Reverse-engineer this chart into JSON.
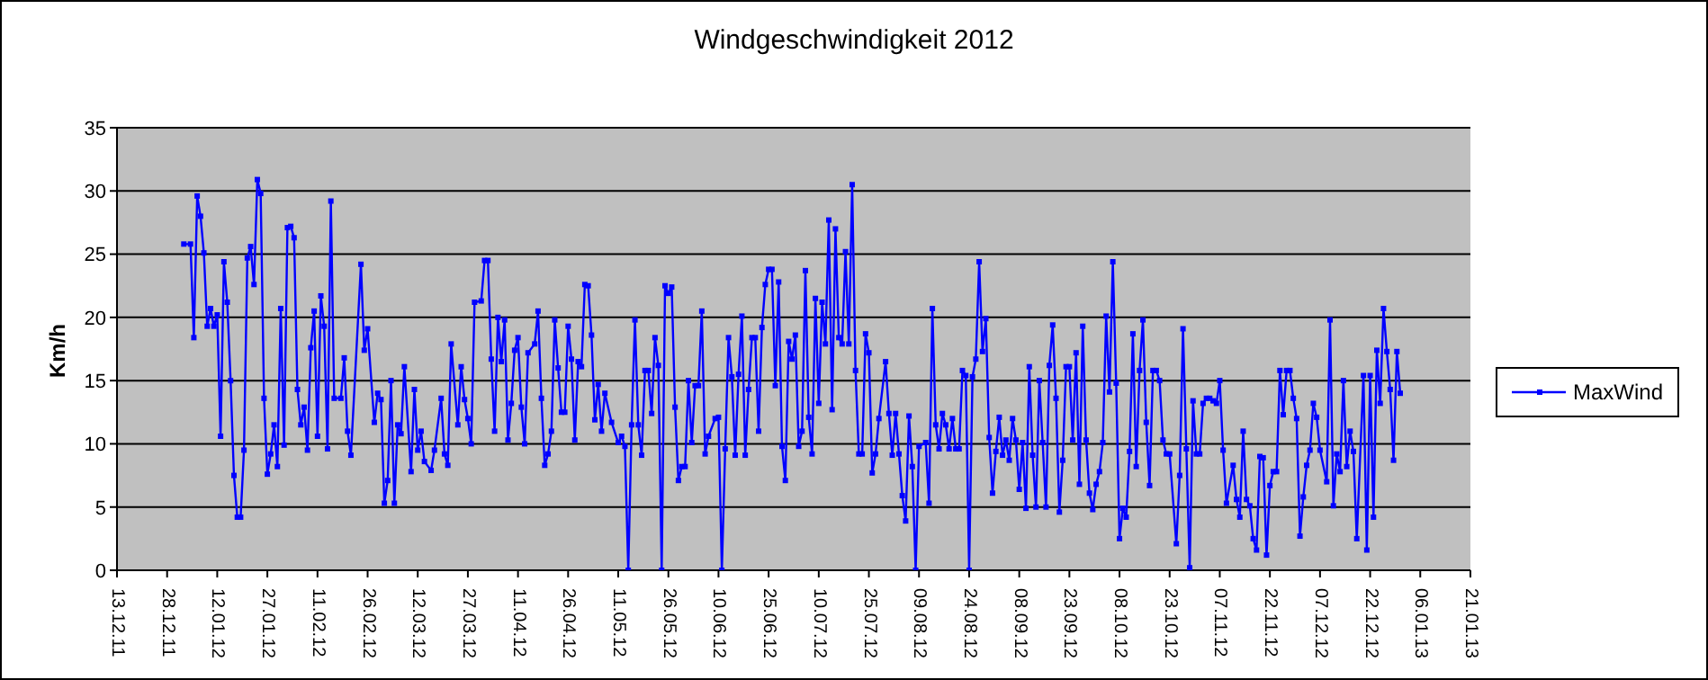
{
  "chart_data": {
    "type": "line",
    "title": "Windgeschwindigkeit 2012",
    "ylabel": "Km/h",
    "x": [
      "2012-01-02",
      "2012-01-04",
      "2012-01-05",
      "2012-01-06",
      "2012-01-07",
      "2012-01-08",
      "2012-01-09",
      "2012-01-10",
      "2012-01-11",
      "2012-01-12",
      "2012-01-13",
      "2012-01-14",
      "2012-01-15",
      "2012-01-16",
      "2012-01-17",
      "2012-01-18",
      "2012-01-19",
      "2012-01-20",
      "2012-01-21",
      "2012-01-22",
      "2012-01-23",
      "2012-01-24",
      "2012-01-25",
      "2012-01-26",
      "2012-01-27",
      "2012-01-28",
      "2012-01-29",
      "2012-01-30",
      "2012-01-31",
      "2012-02-01",
      "2012-02-02",
      "2012-02-03",
      "2012-02-04",
      "2012-02-05",
      "2012-02-06",
      "2012-02-07",
      "2012-02-08",
      "2012-02-09",
      "2012-02-10",
      "2012-02-11",
      "2012-02-12",
      "2012-02-13",
      "2012-02-14",
      "2012-02-15",
      "2012-02-16",
      "2012-02-18",
      "2012-02-19",
      "2012-02-20",
      "2012-02-21",
      "2012-02-24",
      "2012-02-25",
      "2012-02-26",
      "2012-02-28",
      "2012-02-29",
      "2012-03-01",
      "2012-03-02",
      "2012-03-03",
      "2012-03-04",
      "2012-03-05",
      "2012-03-06",
      "2012-03-07",
      "2012-03-08",
      "2012-03-10",
      "2012-03-11",
      "2012-03-12",
      "2012-03-13",
      "2012-03-14",
      "2012-03-16",
      "2012-03-17",
      "2012-03-19",
      "2012-03-20",
      "2012-03-21",
      "2012-03-22",
      "2012-03-24",
      "2012-03-25",
      "2012-03-26",
      "2012-03-27",
      "2012-03-28",
      "2012-03-29",
      "2012-03-31",
      "2012-04-01",
      "2012-04-02",
      "2012-04-03",
      "2012-04-04",
      "2012-04-05",
      "2012-04-06",
      "2012-04-07",
      "2012-04-08",
      "2012-04-09",
      "2012-04-10",
      "2012-04-11",
      "2012-04-12",
      "2012-04-13",
      "2012-04-14",
      "2012-04-16",
      "2012-04-17",
      "2012-04-18",
      "2012-04-19",
      "2012-04-20",
      "2012-04-21",
      "2012-04-22",
      "2012-04-23",
      "2012-04-24",
      "2012-04-25",
      "2012-04-26",
      "2012-04-27",
      "2012-04-28",
      "2012-04-29",
      "2012-04-30",
      "2012-05-01",
      "2012-05-02",
      "2012-05-03",
      "2012-05-04",
      "2012-05-05",
      "2012-05-06",
      "2012-05-07",
      "2012-05-09",
      "2012-05-11",
      "2012-05-12",
      "2012-05-13",
      "2012-05-14",
      "2012-05-15",
      "2012-05-16",
      "2012-05-17",
      "2012-05-18",
      "2012-05-19",
      "2012-05-20",
      "2012-05-21",
      "2012-05-22",
      "2012-05-23",
      "2012-05-24",
      "2012-05-25",
      "2012-05-26",
      "2012-05-27",
      "2012-05-28",
      "2012-05-29",
      "2012-05-30",
      "2012-05-31",
      "2012-06-01",
      "2012-06-02",
      "2012-06-03",
      "2012-06-04",
      "2012-06-05",
      "2012-06-06",
      "2012-06-07",
      "2012-06-09",
      "2012-06-10",
      "2012-06-11",
      "2012-06-12",
      "2012-06-13",
      "2012-06-14",
      "2012-06-15",
      "2012-06-16",
      "2012-06-17",
      "2012-06-18",
      "2012-06-19",
      "2012-06-20",
      "2012-06-21",
      "2012-06-22",
      "2012-06-23",
      "2012-06-24",
      "2012-06-25",
      "2012-06-26",
      "2012-06-27",
      "2012-06-28",
      "2012-06-29",
      "2012-06-30",
      "2012-07-01",
      "2012-07-02",
      "2012-07-03",
      "2012-07-04",
      "2012-07-05",
      "2012-07-06",
      "2012-07-07",
      "2012-07-08",
      "2012-07-09",
      "2012-07-10",
      "2012-07-11",
      "2012-07-12",
      "2012-07-13",
      "2012-07-14",
      "2012-07-15",
      "2012-07-16",
      "2012-07-17",
      "2012-07-18",
      "2012-07-19",
      "2012-07-20",
      "2012-07-21",
      "2012-07-22",
      "2012-07-23",
      "2012-07-24",
      "2012-07-25",
      "2012-07-26",
      "2012-07-27",
      "2012-07-28",
      "2012-07-30",
      "2012-07-31",
      "2012-08-01",
      "2012-08-02",
      "2012-08-03",
      "2012-08-04",
      "2012-08-05",
      "2012-08-06",
      "2012-08-07",
      "2012-08-08",
      "2012-08-09",
      "2012-08-11",
      "2012-08-12",
      "2012-08-13",
      "2012-08-14",
      "2012-08-15",
      "2012-08-16",
      "2012-08-17",
      "2012-08-18",
      "2012-08-19",
      "2012-08-20",
      "2012-08-21",
      "2012-08-22",
      "2012-08-23",
      "2012-08-24",
      "2012-08-25",
      "2012-08-26",
      "2012-08-27",
      "2012-08-28",
      "2012-08-29",
      "2012-08-30",
      "2012-08-31",
      "2012-09-01",
      "2012-09-02",
      "2012-09-03",
      "2012-09-04",
      "2012-09-05",
      "2012-09-06",
      "2012-09-07",
      "2012-09-08",
      "2012-09-09",
      "2012-09-10",
      "2012-09-11",
      "2012-09-12",
      "2012-09-13",
      "2012-09-14",
      "2012-09-15",
      "2012-09-16",
      "2012-09-17",
      "2012-09-18",
      "2012-09-19",
      "2012-09-20",
      "2012-09-21",
      "2012-09-22",
      "2012-09-23",
      "2012-09-24",
      "2012-09-25",
      "2012-09-26",
      "2012-09-27",
      "2012-09-28",
      "2012-09-29",
      "2012-09-30",
      "2012-10-01",
      "2012-10-02",
      "2012-10-03",
      "2012-10-04",
      "2012-10-05",
      "2012-10-06",
      "2012-10-07",
      "2012-10-08",
      "2012-10-09",
      "2012-10-10",
      "2012-10-11",
      "2012-10-12",
      "2012-10-13",
      "2012-10-14",
      "2012-10-15",
      "2012-10-16",
      "2012-10-17",
      "2012-10-18",
      "2012-10-19",
      "2012-10-20",
      "2012-10-21",
      "2012-10-22",
      "2012-10-23",
      "2012-10-25",
      "2012-10-26",
      "2012-10-27",
      "2012-10-28",
      "2012-10-29",
      "2012-10-30",
      "2012-10-31",
      "2012-11-01",
      "2012-11-02",
      "2012-11-03",
      "2012-11-04",
      "2012-11-05",
      "2012-11-06",
      "2012-11-07",
      "2012-11-08",
      "2012-11-09",
      "2012-11-11",
      "2012-11-12",
      "2012-11-13",
      "2012-11-14",
      "2012-11-15",
      "2012-11-16",
      "2012-11-17",
      "2012-11-18",
      "2012-11-19",
      "2012-11-20",
      "2012-11-21",
      "2012-11-22",
      "2012-11-23",
      "2012-11-24",
      "2012-11-25",
      "2012-11-26",
      "2012-11-27",
      "2012-11-28",
      "2012-11-29",
      "2012-11-30",
      "2012-12-01",
      "2012-12-02",
      "2012-12-03",
      "2012-12-04",
      "2012-12-05",
      "2012-12-06",
      "2012-12-07",
      "2012-12-09",
      "2012-12-10",
      "2012-12-11",
      "2012-12-12",
      "2012-12-13",
      "2012-12-14",
      "2012-12-15",
      "2012-12-16",
      "2012-12-17",
      "2012-12-18",
      "2012-12-20",
      "2012-12-21",
      "2012-12-22",
      "2012-12-23",
      "2012-12-24",
      "2012-12-25",
      "2012-12-26",
      "2012-12-27",
      "2012-12-28",
      "2012-12-29",
      "2012-12-30",
      "2012-12-31"
    ],
    "series": [
      {
        "name": "MaxWind",
        "color": "#0000ff",
        "values": [
          25.8,
          25.8,
          18.4,
          29.6,
          28.0,
          25.1,
          19.3,
          20.7,
          19.3,
          20.2,
          10.6,
          24.4,
          21.2,
          15.0,
          7.5,
          4.2,
          4.2,
          9.5,
          24.7,
          25.6,
          22.6,
          30.9,
          29.8,
          13.6,
          7.6,
          9.2,
          11.5,
          8.2,
          20.7,
          9.9,
          27.1,
          27.2,
          26.3,
          14.3,
          11.5,
          12.9,
          9.5,
          17.6,
          20.5,
          10.6,
          21.7,
          19.3,
          9.6,
          29.2,
          13.6,
          13.6,
          16.8,
          11.0,
          9.1,
          24.2,
          17.4,
          19.1,
          11.7,
          14.0,
          13.5,
          5.3,
          7.1,
          15.0,
          5.3,
          11.5,
          10.8,
          16.1,
          7.8,
          14.3,
          9.5,
          11.0,
          8.6,
          7.9,
          9.5,
          13.6,
          9.2,
          8.3,
          17.9,
          11.5,
          16.1,
          13.5,
          12.0,
          10.0,
          21.2,
          21.3,
          24.5,
          24.5,
          16.7,
          11.0,
          20.0,
          16.5,
          19.8,
          10.3,
          13.2,
          17.4,
          18.4,
          12.9,
          10.0,
          17.2,
          17.9,
          20.5,
          13.6,
          8.3,
          9.2,
          11.0,
          19.8,
          16.0,
          12.5,
          12.5,
          19.3,
          16.7,
          10.3,
          16.5,
          16.1,
          22.6,
          22.5,
          18.6,
          11.9,
          14.7,
          11.0,
          14.0,
          11.7,
          10.1,
          10.6,
          9.8,
          0,
          11.5,
          19.8,
          11.5,
          9.1,
          15.8,
          15.8,
          12.4,
          18.4,
          16.2,
          0,
          22.5,
          21.9,
          22.4,
          12.9,
          7.1,
          8.2,
          8.2,
          15.0,
          10.1,
          14.6,
          14.6,
          20.5,
          9.2,
          10.6,
          12.0,
          12.1,
          0,
          9.6,
          18.4,
          15.3,
          9.1,
          15.5,
          20.1,
          9.1,
          14.3,
          18.4,
          18.4,
          11.0,
          19.2,
          22.6,
          23.8,
          23.8,
          14.6,
          22.8,
          9.8,
          7.1,
          18.1,
          16.7,
          18.6,
          9.8,
          11.0,
          23.7,
          12.1,
          9.2,
          21.5,
          13.2,
          21.2,
          17.9,
          27.7,
          12.7,
          27.0,
          18.4,
          17.9,
          25.2,
          17.9,
          30.5,
          15.8,
          9.2,
          9.2,
          18.7,
          17.2,
          7.7,
          9.2,
          12.0,
          16.5,
          12.4,
          9.1,
          12.4,
          9.2,
          5.9,
          3.9,
          12.2,
          8.2,
          0,
          9.8,
          10.1,
          5.3,
          20.7,
          11.5,
          9.6,
          12.4,
          11.5,
          9.6,
          12.0,
          9.6,
          9.6,
          15.8,
          15.4,
          0,
          15.3,
          16.7,
          24.4,
          17.3,
          19.9,
          10.5,
          6.1,
          9.4,
          12.1,
          9.1,
          10.3,
          8.7,
          12.0,
          10.3,
          6.4,
          10.1,
          4.9,
          16.1,
          9.1,
          5.0,
          15.0,
          10.1,
          5.0,
          16.2,
          19.4,
          13.6,
          4.6,
          8.7,
          16.1,
          16.1,
          10.3,
          17.2,
          6.8,
          19.3,
          10.3,
          6.1,
          4.8,
          6.8,
          7.8,
          10.1,
          20.1,
          14.1,
          24.4,
          14.8,
          2.5,
          4.9,
          4.2,
          9.4,
          18.7,
          8.2,
          15.8,
          19.8,
          11.7,
          6.7,
          15.8,
          15.8,
          15.0,
          10.3,
          9.2,
          9.2,
          2.1,
          7.5,
          19.1,
          9.6,
          0.2,
          13.4,
          9.2,
          9.2,
          13.2,
          13.6,
          13.6,
          13.4,
          13.2,
          15.0,
          9.5,
          5.3,
          8.3,
          5.6,
          4.2,
          11.0,
          5.6,
          5.1,
          2.5,
          1.6,
          9.0,
          8.9,
          1.2,
          6.7,
          7.8,
          7.8,
          15.8,
          12.3,
          15.8,
          15.8,
          13.6,
          12.0,
          2.7,
          5.8,
          8.3,
          9.5,
          13.2,
          12.1,
          9.5,
          7.0,
          19.8,
          5.1,
          9.2,
          7.8,
          15.0,
          8.2,
          11.0,
          9.4,
          2.5,
          15.4,
          1.6,
          15.4,
          4.2,
          17.4,
          13.2,
          20.7,
          17.3,
          14.3,
          8.7,
          17.3,
          14.0
        ]
      }
    ],
    "xlim": [
      "2011-12-13",
      "2013-01-21"
    ],
    "xticks": [
      {
        "value": "2011-12-13",
        "label": "13.12.11"
      },
      {
        "value": "2011-12-28",
        "label": "28.12.11"
      },
      {
        "value": "2012-01-12",
        "label": "12.01.12"
      },
      {
        "value": "2012-01-27",
        "label": "27.01.12"
      },
      {
        "value": "2012-02-11",
        "label": "11.02.12"
      },
      {
        "value": "2012-02-26",
        "label": "26.02.12"
      },
      {
        "value": "2012-03-12",
        "label": "12.03.12"
      },
      {
        "value": "2012-03-27",
        "label": "27.03.12"
      },
      {
        "value": "2012-04-11",
        "label": "11.04.12"
      },
      {
        "value": "2012-04-26",
        "label": "26.04.12"
      },
      {
        "value": "2012-05-11",
        "label": "11.05.12"
      },
      {
        "value": "2012-05-26",
        "label": "26.05.12"
      },
      {
        "value": "2012-06-10",
        "label": "10.06.12"
      },
      {
        "value": "2012-06-25",
        "label": "25.06.12"
      },
      {
        "value": "2012-07-10",
        "label": "10.07.12"
      },
      {
        "value": "2012-07-25",
        "label": "25.07.12"
      },
      {
        "value": "2012-08-09",
        "label": "09.08.12"
      },
      {
        "value": "2012-08-24",
        "label": "24.08.12"
      },
      {
        "value": "2012-09-08",
        "label": "08.09.12"
      },
      {
        "value": "2012-09-23",
        "label": "23.09.12"
      },
      {
        "value": "2012-10-08",
        "label": "08.10.12"
      },
      {
        "value": "2012-10-23",
        "label": "23.10.12"
      },
      {
        "value": "2012-11-07",
        "label": "07.11.12"
      },
      {
        "value": "2012-11-22",
        "label": "22.11.12"
      },
      {
        "value": "2012-12-07",
        "label": "07.12.12"
      },
      {
        "value": "2012-12-22",
        "label": "22.12.12"
      },
      {
        "value": "2013-01-06",
        "label": "06.01.13"
      },
      {
        "value": "2013-01-21",
        "label": "21.01.13"
      }
    ],
    "ylim": [
      0,
      35
    ],
    "yticks": [
      0,
      5,
      10,
      15,
      20,
      25,
      30,
      35
    ],
    "grid": "y",
    "legend": "right",
    "marker": "square",
    "line_style": "solid"
  }
}
